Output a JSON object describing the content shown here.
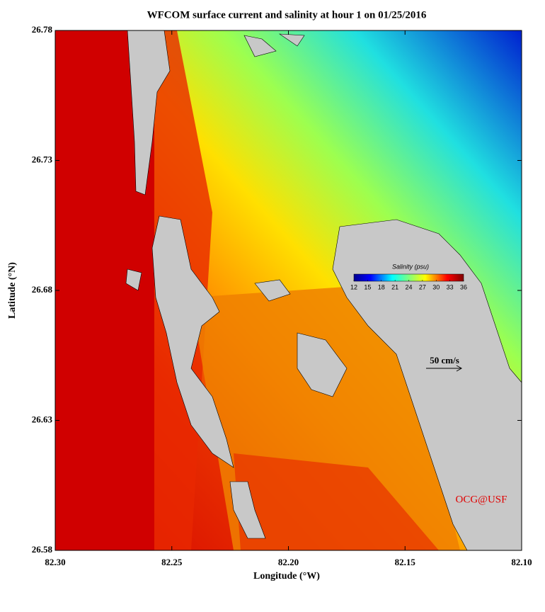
{
  "chart_data": {
    "type": "map",
    "title": "WFCOM surface current and salinity at hour 1 on 01/25/2016",
    "x_label": "Longitude (°W)",
    "y_label": "Latitude (°N)",
    "xlim": [
      82.3,
      82.1
    ],
    "xticks": [
      {
        "value": 82.3,
        "label": "82.30"
      },
      {
        "value": 82.25,
        "label": "82.25"
      },
      {
        "value": 82.2,
        "label": "82.20"
      },
      {
        "value": 82.15,
        "label": "82.15"
      },
      {
        "value": 82.1,
        "label": "82.10"
      }
    ],
    "ylim": [
      26.58,
      26.78
    ],
    "yticks": [
      26.58,
      26.63,
      26.68,
      26.73,
      26.78
    ],
    "colorbar": {
      "label": "Salinity (psu)",
      "range": [
        12,
        36
      ],
      "ticks": [
        12,
        15,
        18,
        21,
        24,
        27,
        30,
        33,
        36
      ]
    },
    "annotations": [
      "50 cm/s",
      "OCG@USF"
    ]
  }
}
